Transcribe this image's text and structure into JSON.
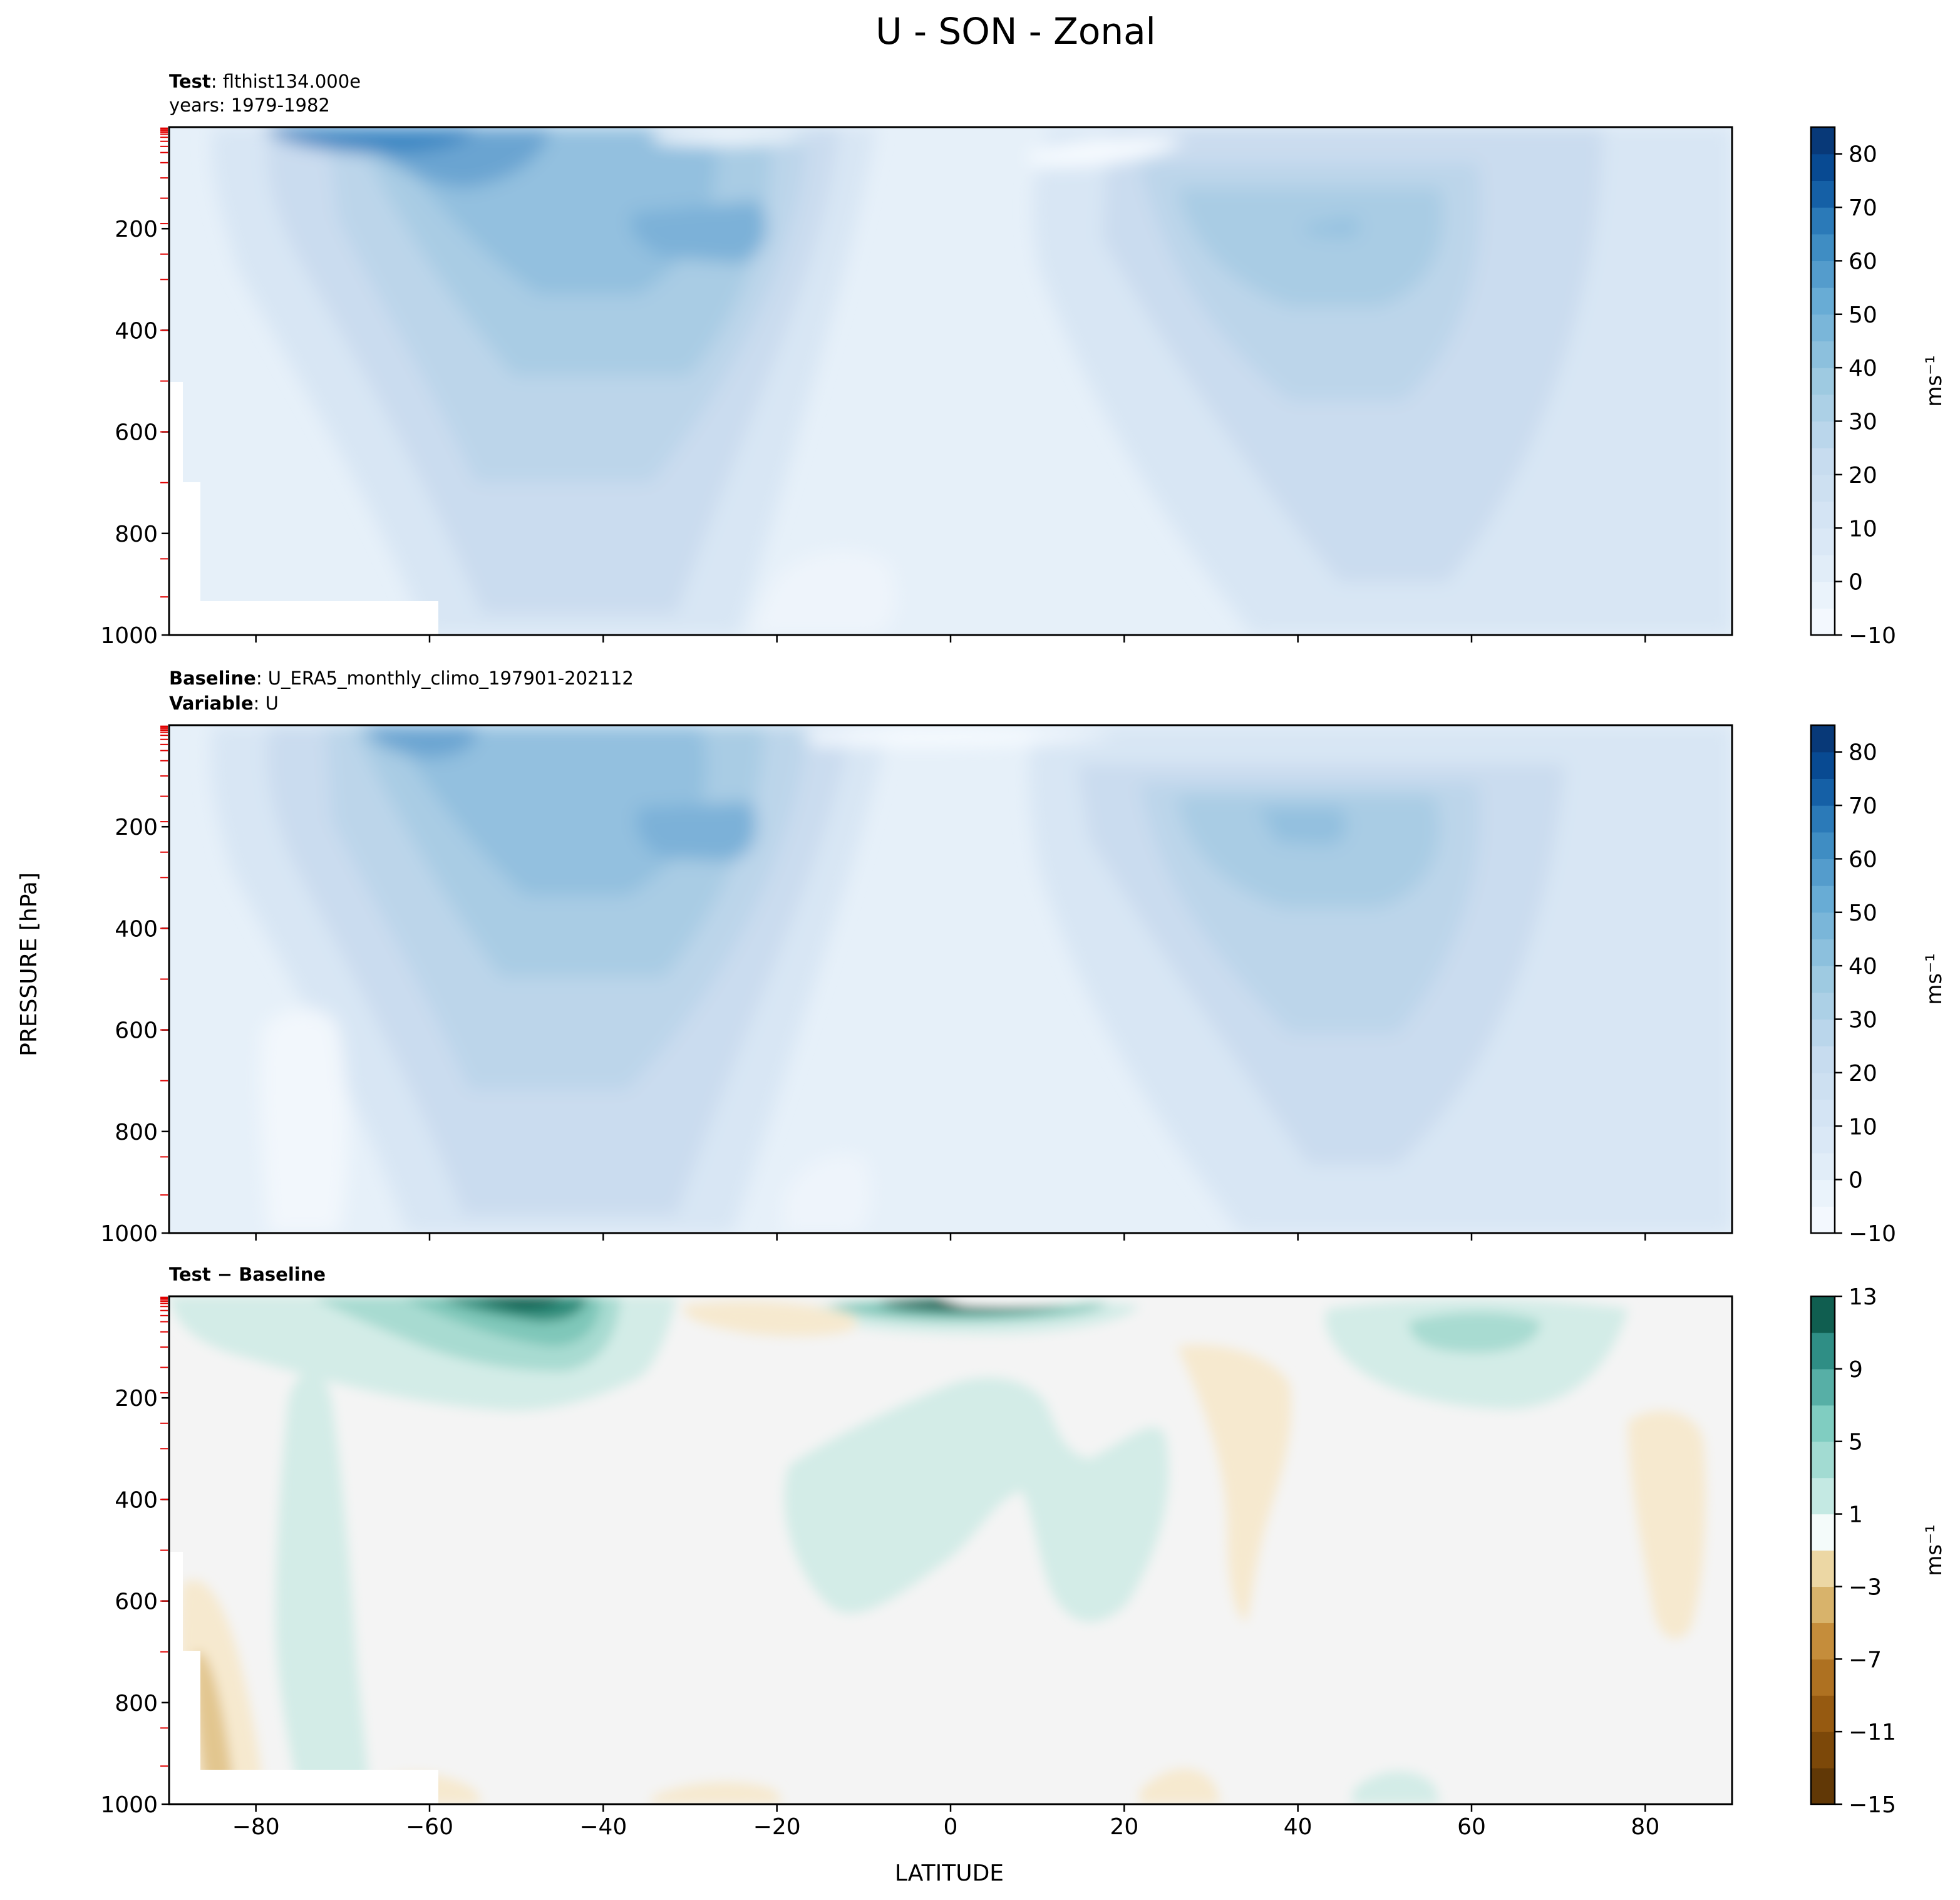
{
  "figure": {
    "title": "U - SON - Zonal",
    "ylabel": "PRESSURE [hPa]",
    "xlabel": "LATITUDE",
    "units": "ms⁻¹"
  },
  "panels": [
    {
      "label1_bold": "Test",
      "label1_text": ": flthist134.000e",
      "label2_bold": "",
      "label2_text": "years: 1979-1982"
    },
    {
      "label1_bold": "Baseline",
      "label1_text": ": U_ERA5_monthly_climo_197901-202112",
      "label2_bold": "Variable",
      "label2_text": ": U"
    },
    {
      "label1_bold": "Test − Baseline",
      "label1_text": "",
      "label2_bold": "",
      "label2_text": ""
    }
  ],
  "chart_data": [
    {
      "type": "heatmap",
      "panel": "Test",
      "x_axis": {
        "label": "LATITUDE",
        "range": [
          -90,
          90
        ],
        "ticks": [
          -80,
          -60,
          -40,
          -20,
          0,
          20,
          40,
          60,
          80
        ]
      },
      "y_axis": {
        "label": "PRESSURE [hPa]",
        "range": [
          1000,
          0
        ],
        "ticks": [
          200,
          400,
          600,
          800,
          1000
        ]
      },
      "colorbar": {
        "label": "ms⁻¹",
        "colormap": "Blues",
        "levels": [
          -10,
          -5,
          0,
          5,
          10,
          15,
          20,
          25,
          30,
          35,
          40,
          45,
          50,
          55,
          60,
          65,
          70,
          75,
          80,
          85
        ],
        "tick_labels": [
          "80",
          "70",
          "60",
          "50",
          "40",
          "30",
          "20",
          "10",
          "0",
          "−10"
        ]
      },
      "features": [
        {
          "name": "SH stratospheric jet",
          "lat": -55,
          "pressure": 20,
          "value": 60
        },
        {
          "name": "SH subtropical jet core",
          "lat": -30,
          "pressure": 200,
          "value": 40
        },
        {
          "name": "NH subtropical jet core",
          "lat": 42,
          "pressure": 200,
          "value": 30
        }
      ]
    },
    {
      "type": "heatmap",
      "panel": "Baseline",
      "x_axis": {
        "label": "LATITUDE",
        "range": [
          -90,
          90
        ],
        "ticks": [
          -80,
          -60,
          -40,
          -20,
          0,
          20,
          40,
          60,
          80
        ]
      },
      "y_axis": {
        "label": "PRESSURE [hPa]",
        "range": [
          1000,
          0
        ],
        "ticks": [
          200,
          400,
          600,
          800,
          1000
        ]
      },
      "colorbar": {
        "label": "ms⁻¹",
        "colormap": "Blues",
        "levels": [
          -10,
          -5,
          0,
          5,
          10,
          15,
          20,
          25,
          30,
          35,
          40,
          45,
          50,
          55,
          60,
          65,
          70,
          75,
          80,
          85
        ],
        "tick_labels": [
          "80",
          "70",
          "60",
          "50",
          "40",
          "30",
          "20",
          "10",
          "0",
          "−10"
        ]
      },
      "features": [
        {
          "name": "SH stratospheric jet",
          "lat": -57,
          "pressure": 30,
          "value": 45
        },
        {
          "name": "SH subtropical jet core",
          "lat": -30,
          "pressure": 200,
          "value": 35
        },
        {
          "name": "NH subtropical jet core",
          "lat": 40,
          "pressure": 200,
          "value": 30
        }
      ]
    },
    {
      "type": "heatmap",
      "panel": "Test − Baseline",
      "x_axis": {
        "label": "LATITUDE",
        "range": [
          -90,
          90
        ],
        "ticks": [
          -80,
          -60,
          -40,
          -20,
          0,
          20,
          40,
          60,
          80
        ]
      },
      "y_axis": {
        "label": "PRESSURE [hPa]",
        "range": [
          1000,
          0
        ],
        "ticks": [
          200,
          400,
          600,
          800,
          1000
        ]
      },
      "colorbar": {
        "label": "ms⁻¹",
        "colormap": "BrBG",
        "levels": [
          -15,
          -13,
          -11,
          -9,
          -7,
          -5,
          -3,
          -1,
          1,
          3,
          5,
          7,
          9,
          11,
          13
        ],
        "tick_labels": [
          "13",
          "9",
          "5",
          "1",
          "−3",
          "−7",
          "−11",
          "−15"
        ]
      },
      "features": [
        {
          "name": "SH stratosphere positive",
          "lat": -50,
          "pressure": 20,
          "value": 11
        },
        {
          "name": "Tropical upper positive",
          "lat": 5,
          "pressure": 20,
          "value": 13
        },
        {
          "name": "NH midlatitude positive",
          "lat": 50,
          "pressure": 80,
          "value": 4
        }
      ]
    }
  ]
}
